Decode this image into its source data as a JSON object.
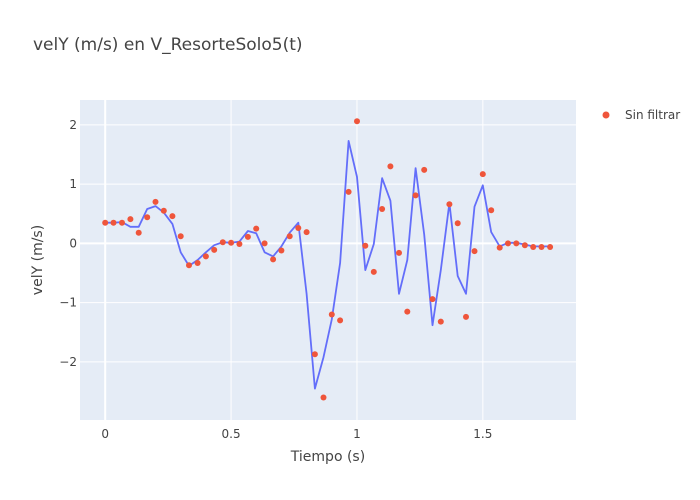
{
  "chart_data": {
    "type": "line",
    "title": "velY (m/s) en V_ResorteSolo5(t)",
    "xlabel": "Tiempo (s)",
    "ylabel": "velY (m/s)",
    "xlim": [
      -0.1,
      1.87
    ],
    "ylim": [
      -2.98,
      2.42
    ],
    "x_ticks": [
      0,
      0.5,
      1,
      1.5
    ],
    "x_tick_labels": [
      "0",
      "0.5",
      "1",
      "1.5"
    ],
    "y_ticks": [
      -2,
      -1,
      0,
      1,
      2
    ],
    "y_tick_labels": [
      "−2",
      "−1",
      "0",
      "1",
      "2"
    ],
    "grid": true,
    "legend_position": "top-right",
    "colors": {
      "plot_background": "#E5ECF6",
      "grid": "#ffffff",
      "line": "#636EFA",
      "markers": "#EF553B"
    },
    "series": [
      {
        "name": "",
        "mode": "lines",
        "x": [
          0,
          0.033,
          0.067,
          0.1,
          0.133,
          0.167,
          0.2,
          0.233,
          0.267,
          0.3,
          0.333,
          0.367,
          0.4,
          0.433,
          0.467,
          0.5,
          0.533,
          0.567,
          0.6,
          0.633,
          0.667,
          0.7,
          0.733,
          0.767,
          0.8,
          0.833,
          0.867,
          0.9,
          0.933,
          0.967,
          1.0,
          1.033,
          1.067,
          1.1,
          1.133,
          1.167,
          1.2,
          1.233,
          1.267,
          1.3,
          1.333,
          1.367,
          1.4,
          1.433,
          1.467,
          1.5,
          1.533,
          1.567,
          1.6,
          1.633,
          1.667,
          1.7,
          1.733,
          1.767
        ],
        "y": [
          0.35,
          0.35,
          0.36,
          0.28,
          0.28,
          0.58,
          0.63,
          0.52,
          0.33,
          -0.15,
          -0.38,
          -0.28,
          -0.15,
          -0.03,
          0.02,
          0.01,
          0.03,
          0.21,
          0.17,
          -0.15,
          -0.22,
          -0.05,
          0.18,
          0.35,
          -0.85,
          -2.45,
          -1.92,
          -1.28,
          -0.33,
          1.73,
          1.12,
          -0.45,
          -0.01,
          1.1,
          0.72,
          -0.85,
          -0.28,
          1.27,
          0.15,
          -1.38,
          -0.45,
          0.68,
          -0.55,
          -0.85,
          0.62,
          0.98,
          0.19,
          -0.05,
          0.01,
          0.01,
          -0.02,
          -0.05,
          -0.05,
          -0.05
        ]
      },
      {
        "name": "Sin filtrar",
        "mode": "markers",
        "x": [
          0,
          0.033,
          0.067,
          0.1,
          0.133,
          0.167,
          0.2,
          0.233,
          0.267,
          0.3,
          0.333,
          0.367,
          0.4,
          0.433,
          0.467,
          0.5,
          0.533,
          0.567,
          0.6,
          0.633,
          0.667,
          0.7,
          0.733,
          0.767,
          0.8,
          0.833,
          0.867,
          0.9,
          0.933,
          0.967,
          1.0,
          1.033,
          1.067,
          1.1,
          1.133,
          1.167,
          1.2,
          1.233,
          1.267,
          1.3,
          1.333,
          1.367,
          1.4,
          1.433,
          1.467,
          1.5,
          1.533,
          1.567,
          1.6,
          1.633,
          1.667,
          1.7,
          1.733,
          1.767
        ],
        "y": [
          0.35,
          0.35,
          0.35,
          0.41,
          0.18,
          0.44,
          0.7,
          0.55,
          0.46,
          0.12,
          -0.37,
          -0.33,
          -0.22,
          -0.11,
          0.02,
          0.01,
          -0.01,
          0.11,
          0.25,
          0.0,
          -0.27,
          -0.12,
          0.12,
          0.26,
          0.19,
          -1.87,
          -2.6,
          -1.2,
          -1.3,
          0.87,
          2.06,
          -0.04,
          -0.48,
          0.58,
          1.3,
          -0.16,
          -1.15,
          0.81,
          1.24,
          -0.94,
          -1.32,
          0.66,
          0.34,
          -1.24,
          -0.13,
          1.17,
          0.56,
          -0.07,
          0.0,
          0.0,
          -0.03,
          -0.06,
          -0.06,
          -0.06
        ]
      }
    ]
  }
}
